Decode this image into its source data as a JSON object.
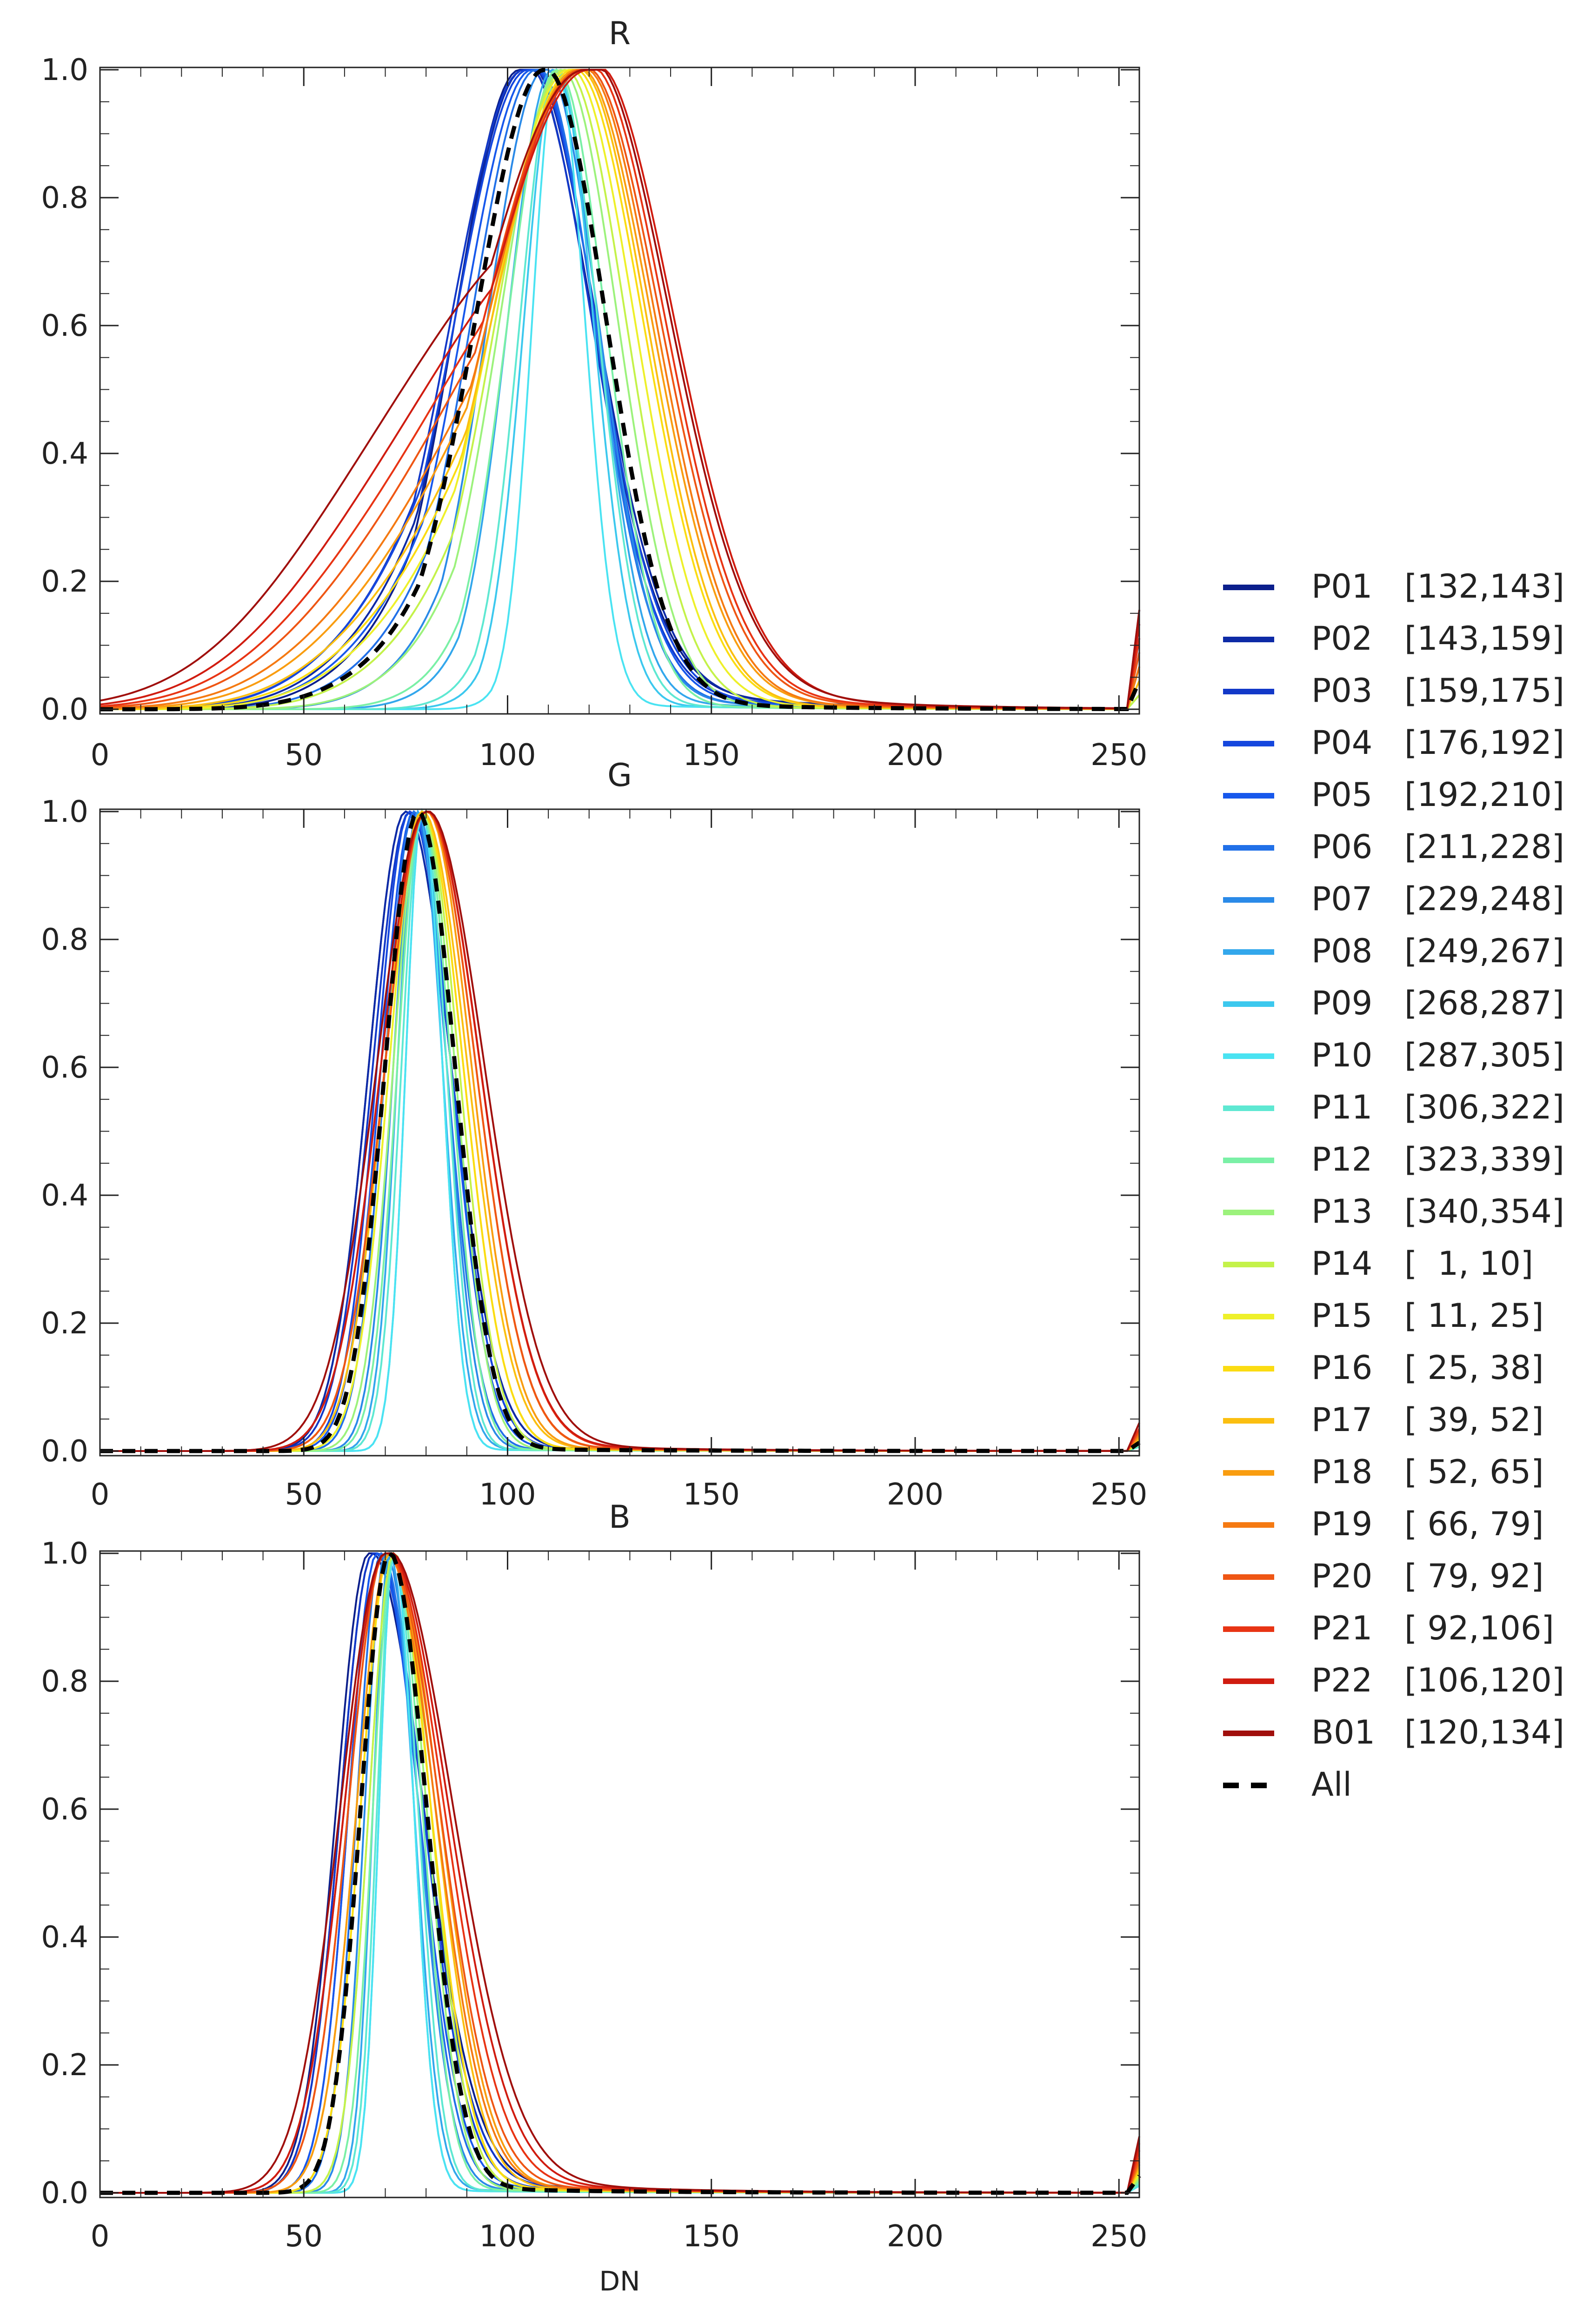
{
  "chart_data": [
    {
      "type": "line",
      "title": "R",
      "xlabel": "",
      "ylabel": "",
      "xlim": [
        0,
        255
      ],
      "ylim": [
        0,
        1.0
      ],
      "xticks": [
        "0",
        "50",
        "100",
        "150",
        "200",
        "250"
      ],
      "yticks": [
        "0.0",
        "0.2",
        "0.4",
        "0.6",
        "0.8",
        "1.0"
      ],
      "curve_model": "each series is a normalized histogram; peak = DN of maximum, width_left/width_right = Gaussian sigma in DN, shoulder = secondary low-DN component",
      "series": [
        {
          "name": "P01",
          "peak": 103,
          "width_left": 16,
          "width_right": 17,
          "shoulder": 0.1,
          "tail": 0.07
        },
        {
          "name": "P02",
          "peak": 104,
          "width_left": 17,
          "width_right": 17,
          "shoulder": 0.12,
          "tail": 0.06
        },
        {
          "name": "P03",
          "peak": 104,
          "width_left": 18,
          "width_right": 16,
          "shoulder": 0.13,
          "tail": 0.05
        },
        {
          "name": "P04",
          "peak": 105,
          "width_left": 18,
          "width_right": 16,
          "shoulder": 0.14,
          "tail": 0.05
        },
        {
          "name": "P05",
          "peak": 106,
          "width_left": 17,
          "width_right": 15,
          "shoulder": 0.12,
          "tail": 0.04
        },
        {
          "name": "P06",
          "peak": 107,
          "width_left": 16,
          "width_right": 14,
          "shoulder": 0.1,
          "tail": 0.03
        },
        {
          "name": "P07",
          "peak": 109,
          "width_left": 14,
          "width_right": 13,
          "shoulder": 0.08,
          "tail": 0.03
        },
        {
          "name": "P08",
          "peak": 111,
          "width_left": 11,
          "width_right": 11,
          "shoulder": 0.05,
          "tail": 0.02
        },
        {
          "name": "P09",
          "peak": 112,
          "width_left": 8,
          "width_right": 9,
          "shoulder": 0.03,
          "tail": 0.01
        },
        {
          "name": "P10",
          "peak": 112,
          "width_left": 6,
          "width_right": 7,
          "shoulder": 0.02,
          "tail": 0.01
        },
        {
          "name": "P11",
          "peak": 112,
          "width_left": 9,
          "width_right": 10,
          "shoulder": 0.04,
          "tail": 0.01
        },
        {
          "name": "P12",
          "peak": 112,
          "width_left": 12,
          "width_right": 12,
          "shoulder": 0.06,
          "tail": 0.01
        },
        {
          "name": "P13",
          "peak": 113,
          "width_left": 15,
          "width_right": 14,
          "shoulder": 0.09,
          "tail": 0.01
        },
        {
          "name": "P14",
          "peak": 114,
          "width_left": 17,
          "width_right": 15,
          "shoulder": 0.11,
          "tail": 0.01
        },
        {
          "name": "P15",
          "peak": 115,
          "width_left": 19,
          "width_right": 16,
          "shoulder": 0.14,
          "tail": 0.02
        },
        {
          "name": "P16",
          "peak": 116,
          "width_left": 20,
          "width_right": 17,
          "shoulder": 0.16,
          "tail": 0.02
        },
        {
          "name": "P17",
          "peak": 117,
          "width_left": 21,
          "width_right": 17,
          "shoulder": 0.18,
          "tail": 0.02
        },
        {
          "name": "P18",
          "peak": 117,
          "width_left": 22,
          "width_right": 18,
          "shoulder": 0.2,
          "tail": 0.03
        },
        {
          "name": "P19",
          "peak": 118,
          "width_left": 23,
          "width_right": 18,
          "shoulder": 0.22,
          "tail": 0.03
        },
        {
          "name": "P20",
          "peak": 118,
          "width_left": 24,
          "width_right": 19,
          "shoulder": 0.25,
          "tail": 0.04
        },
        {
          "name": "P21",
          "peak": 119,
          "width_left": 25,
          "width_right": 19,
          "shoulder": 0.28,
          "tail": 0.05
        },
        {
          "name": "P22",
          "peak": 120,
          "width_left": 26,
          "width_right": 20,
          "shoulder": 0.32,
          "tail": 0.06
        },
        {
          "name": "B01",
          "peak": 119,
          "width_left": 27,
          "width_right": 20,
          "shoulder": 0.35,
          "tail": 0.07
        },
        {
          "name": "All",
          "peak": 109,
          "width_left": 17,
          "width_right": 15,
          "shoulder": 0.08,
          "tail": 0.02
        }
      ]
    },
    {
      "type": "line",
      "title": "G",
      "xlabel": "",
      "ylabel": "",
      "xlim": [
        0,
        255
      ],
      "ylim": [
        0,
        1.0
      ],
      "xticks": [
        "0",
        "50",
        "100",
        "150",
        "200",
        "250"
      ],
      "yticks": [
        "0.0",
        "0.2",
        "0.4",
        "0.6",
        "0.8",
        "1.0"
      ],
      "series": [
        {
          "name": "P01",
          "peak": 75,
          "width_left": 9,
          "width_right": 11,
          "shoulder": 0,
          "tail": 0.01
        },
        {
          "name": "P02",
          "peak": 75,
          "width_left": 9,
          "width_right": 11,
          "shoulder": 0,
          "tail": 0.01
        },
        {
          "name": "P03",
          "peak": 76,
          "width_left": 9,
          "width_right": 10,
          "shoulder": 0,
          "tail": 0.01
        },
        {
          "name": "P04",
          "peak": 76,
          "width_left": 8,
          "width_right": 10,
          "shoulder": 0,
          "tail": 0.01
        },
        {
          "name": "P05",
          "peak": 77,
          "width_left": 8,
          "width_right": 9,
          "shoulder": 0,
          "tail": 0.01
        },
        {
          "name": "P06",
          "peak": 77,
          "width_left": 7,
          "width_right": 8,
          "shoulder": 0,
          "tail": 0.005
        },
        {
          "name": "P07",
          "peak": 78,
          "width_left": 6,
          "width_right": 7,
          "shoulder": 0,
          "tail": 0.005
        },
        {
          "name": "P08",
          "peak": 78,
          "width_left": 5,
          "width_right": 6,
          "shoulder": 0,
          "tail": 0.005
        },
        {
          "name": "P09",
          "peak": 79,
          "width_left": 4,
          "width_right": 5,
          "shoulder": 0,
          "tail": 0.003
        },
        {
          "name": "P10",
          "peak": 79,
          "width_left": 4,
          "width_right": 5,
          "shoulder": 0,
          "tail": 0.003
        },
        {
          "name": "P11",
          "peak": 79,
          "width_left": 5,
          "width_right": 6,
          "shoulder": 0,
          "tail": 0.003
        },
        {
          "name": "P12",
          "peak": 79,
          "width_left": 6,
          "width_right": 7,
          "shoulder": 0,
          "tail": 0.004
        },
        {
          "name": "P13",
          "peak": 79,
          "width_left": 7,
          "width_right": 8,
          "shoulder": 0,
          "tail": 0.005
        },
        {
          "name": "P14",
          "peak": 79,
          "width_left": 8,
          "width_right": 9,
          "shoulder": 0,
          "tail": 0.006
        },
        {
          "name": "P15",
          "peak": 79,
          "width_left": 8,
          "width_right": 10,
          "shoulder": 0,
          "tail": 0.007
        },
        {
          "name": "P16",
          "peak": 79,
          "width_left": 9,
          "width_right": 10,
          "shoulder": 0,
          "tail": 0.008
        },
        {
          "name": "P17",
          "peak": 79,
          "width_left": 9,
          "width_right": 11,
          "shoulder": 0,
          "tail": 0.01
        },
        {
          "name": "P18",
          "peak": 80,
          "width_left": 10,
          "width_right": 11,
          "shoulder": 0,
          "tail": 0.01
        },
        {
          "name": "P19",
          "peak": 80,
          "width_left": 10,
          "width_right": 12,
          "shoulder": 0,
          "tail": 0.012
        },
        {
          "name": "P20",
          "peak": 80,
          "width_left": 10,
          "width_right": 12,
          "shoulder": 0,
          "tail": 0.014
        },
        {
          "name": "P21",
          "peak": 80,
          "width_left": 11,
          "width_right": 13,
          "shoulder": 0,
          "tail": 0.016
        },
        {
          "name": "P22",
          "peak": 80,
          "width_left": 11,
          "width_right": 13,
          "shoulder": 0,
          "tail": 0.02
        },
        {
          "name": "B01",
          "peak": 80,
          "width_left": 12,
          "width_right": 14,
          "shoulder": 0,
          "tail": 0.02
        },
        {
          "name": "All",
          "peak": 78,
          "width_left": 8,
          "width_right": 9,
          "shoulder": 0,
          "tail": 0.006
        }
      ]
    },
    {
      "type": "line",
      "title": "B",
      "xlabel": "DN",
      "ylabel": "",
      "xlim": [
        0,
        255
      ],
      "ylim": [
        0,
        1.0
      ],
      "xticks": [
        "0",
        "50",
        "100",
        "150",
        "200",
        "250"
      ],
      "yticks": [
        "0.0",
        "0.2",
        "0.4",
        "0.6",
        "0.8",
        "1.0"
      ],
      "series": [
        {
          "name": "P01",
          "peak": 66,
          "width_left": 8,
          "width_right": 13,
          "shoulder": 0,
          "tail": 0.03
        },
        {
          "name": "P02",
          "peak": 67,
          "width_left": 8,
          "width_right": 12,
          "shoulder": 0,
          "tail": 0.03
        },
        {
          "name": "P03",
          "peak": 67,
          "width_left": 8,
          "width_right": 12,
          "shoulder": 0,
          "tail": 0.03
        },
        {
          "name": "P04",
          "peak": 68,
          "width_left": 7,
          "width_right": 11,
          "shoulder": 0,
          "tail": 0.02
        },
        {
          "name": "P05",
          "peak": 68,
          "width_left": 7,
          "width_right": 10,
          "shoulder": 0,
          "tail": 0.02
        },
        {
          "name": "P06",
          "peak": 69,
          "width_left": 6,
          "width_right": 9,
          "shoulder": 0,
          "tail": 0.015
        },
        {
          "name": "P07",
          "peak": 70,
          "width_left": 5,
          "width_right": 8,
          "shoulder": 0,
          "tail": 0.01
        },
        {
          "name": "P08",
          "peak": 71,
          "width_left": 4,
          "width_right": 6,
          "shoulder": 0,
          "tail": 0.008
        },
        {
          "name": "P09",
          "peak": 72,
          "width_left": 3.5,
          "width_right": 5,
          "shoulder": 0,
          "tail": 0.005
        },
        {
          "name": "P10",
          "peak": 72,
          "width_left": 3.5,
          "width_right": 5,
          "shoulder": 0,
          "tail": 0.005
        },
        {
          "name": "P11",
          "peak": 72,
          "width_left": 4,
          "width_right": 6,
          "shoulder": 0,
          "tail": 0.006
        },
        {
          "name": "P12",
          "peak": 72,
          "width_left": 5,
          "width_right": 7,
          "shoulder": 0,
          "tail": 0.008
        },
        {
          "name": "P13",
          "peak": 72,
          "width_left": 6,
          "width_right": 8,
          "shoulder": 0,
          "tail": 0.01
        },
        {
          "name": "P14",
          "peak": 72,
          "width_left": 6,
          "width_right": 9,
          "shoulder": 0,
          "tail": 0.012
        },
        {
          "name": "P15",
          "peak": 71,
          "width_left": 7,
          "width_right": 10,
          "shoulder": 0,
          "tail": 0.014
        },
        {
          "name": "P16",
          "peak": 71,
          "width_left": 7,
          "width_right": 10,
          "shoulder": 0,
          "tail": 0.016
        },
        {
          "name": "P17",
          "peak": 71,
          "width_left": 8,
          "width_right": 11,
          "shoulder": 0,
          "tail": 0.018
        },
        {
          "name": "P18",
          "peak": 71,
          "width_left": 8,
          "width_right": 12,
          "shoulder": 0,
          "tail": 0.02
        },
        {
          "name": "P19",
          "peak": 70,
          "width_left": 9,
          "width_right": 12,
          "shoulder": 0,
          "tail": 0.022
        },
        {
          "name": "P20",
          "peak": 70,
          "width_left": 9,
          "width_right": 13,
          "shoulder": 0,
          "tail": 0.025
        },
        {
          "name": "P21",
          "peak": 70,
          "width_left": 10,
          "width_right": 14,
          "shoulder": 0,
          "tail": 0.03
        },
        {
          "name": "P22",
          "peak": 70,
          "width_left": 10,
          "width_right": 15,
          "shoulder": 0,
          "tail": 0.035
        },
        {
          "name": "B01",
          "peak": 70,
          "width_left": 11,
          "width_right": 16,
          "shoulder": 0,
          "tail": 0.04
        },
        {
          "name": "All",
          "peak": 71,
          "width_left": 7,
          "width_right": 9,
          "shoulder": 0,
          "tail": 0.012
        }
      ]
    }
  ],
  "legend": {
    "placement": "right",
    "entries": [
      {
        "name": "P01",
        "range": "[132,143]",
        "color": "#0b1f8c",
        "dashed": false
      },
      {
        "name": "P02",
        "range": "[143,159]",
        "color": "#0d2aa6",
        "dashed": false
      },
      {
        "name": "P03",
        "range": "[159,175]",
        "color": "#1238c8",
        "dashed": false
      },
      {
        "name": "P04",
        "range": "[176,192]",
        "color": "#1547de",
        "dashed": false
      },
      {
        "name": "P05",
        "range": "[192,210]",
        "color": "#1758ec",
        "dashed": false
      },
      {
        "name": "P06",
        "range": "[211,228]",
        "color": "#2170e8",
        "dashed": false
      },
      {
        "name": "P07",
        "range": "[229,248]",
        "color": "#2a8ae8",
        "dashed": false
      },
      {
        "name": "P08",
        "range": "[249,267]",
        "color": "#33a7ec",
        "dashed": false
      },
      {
        "name": "P09",
        "range": "[268,287]",
        "color": "#3cc8ee",
        "dashed": false
      },
      {
        "name": "P10",
        "range": "[287,305]",
        "color": "#4ae3f2",
        "dashed": false
      },
      {
        "name": "P11",
        "range": "[306,322]",
        "color": "#5ee8d2",
        "dashed": false
      },
      {
        "name": "P12",
        "range": "[323,339]",
        "color": "#7af0a6",
        "dashed": false
      },
      {
        "name": "P13",
        "range": "[340,354]",
        "color": "#9cf27c",
        "dashed": false
      },
      {
        "name": "P14",
        "range": "[  1, 10]",
        "color": "#c4f24a",
        "dashed": false
      },
      {
        "name": "P15",
        "range": "[ 11, 25]",
        "color": "#eef02a",
        "dashed": false
      },
      {
        "name": "P16",
        "range": "[ 25, 38]",
        "color": "#fbdc12",
        "dashed": false
      },
      {
        "name": "P17",
        "range": "[ 39, 52]",
        "color": "#fbbf10",
        "dashed": false
      },
      {
        "name": "P18",
        "range": "[ 52, 65]",
        "color": "#f99d10",
        "dashed": false
      },
      {
        "name": "P19",
        "range": "[ 66, 79]",
        "color": "#f57a12",
        "dashed": false
      },
      {
        "name": "P20",
        "range": "[ 79, 92]",
        "color": "#ef5614",
        "dashed": false
      },
      {
        "name": "P21",
        "range": "[ 92,106]",
        "color": "#e83414",
        "dashed": false
      },
      {
        "name": "P22",
        "range": "[106,120]",
        "color": "#d01c10",
        "dashed": false
      },
      {
        "name": "B01",
        "range": "[120,134]",
        "color": "#a00f0c",
        "dashed": false
      },
      {
        "name": "All",
        "range": "",
        "color": "#000000",
        "dashed": true
      }
    ]
  }
}
